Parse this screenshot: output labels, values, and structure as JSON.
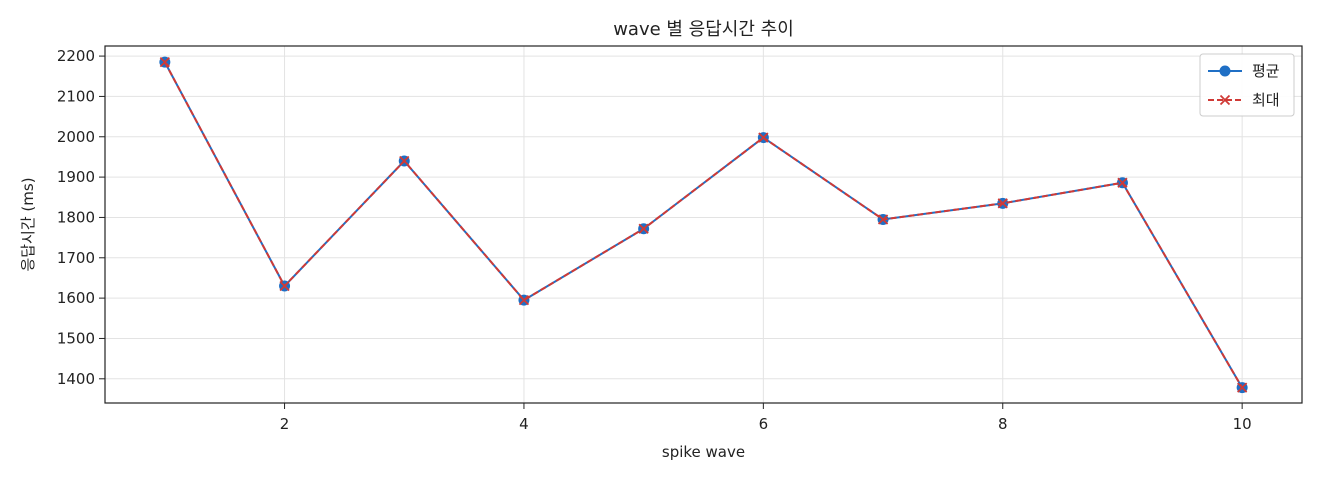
{
  "chart_data": {
    "type": "line",
    "title": "wave 별 응답시간 추이",
    "xlabel": "spike wave",
    "ylabel": "응답시간 (ms)",
    "x": [
      1,
      2,
      3,
      4,
      5,
      6,
      7,
      8,
      9,
      10
    ],
    "xlim": [
      0.5,
      10.5
    ],
    "ylim": [
      1340,
      2225
    ],
    "xticks": [
      2,
      4,
      6,
      8,
      10
    ],
    "yticks": [
      1400,
      1500,
      1600,
      1700,
      1800,
      1900,
      2000,
      2100,
      2200
    ],
    "grid": true,
    "legend_position": "top-right",
    "series": [
      {
        "name": "평균",
        "values": [
          2185,
          1630,
          1940,
          1595,
          1772,
          1998,
          1795,
          1835,
          1886,
          1378
        ],
        "color": "#1f6fc5",
        "line_style": "solid",
        "marker": "circle"
      },
      {
        "name": "최대",
        "values": [
          2185,
          1630,
          1940,
          1595,
          1772,
          1998,
          1795,
          1835,
          1886,
          1378
        ],
        "color": "#d03a36",
        "line_style": "dashed",
        "marker": "x"
      }
    ]
  }
}
